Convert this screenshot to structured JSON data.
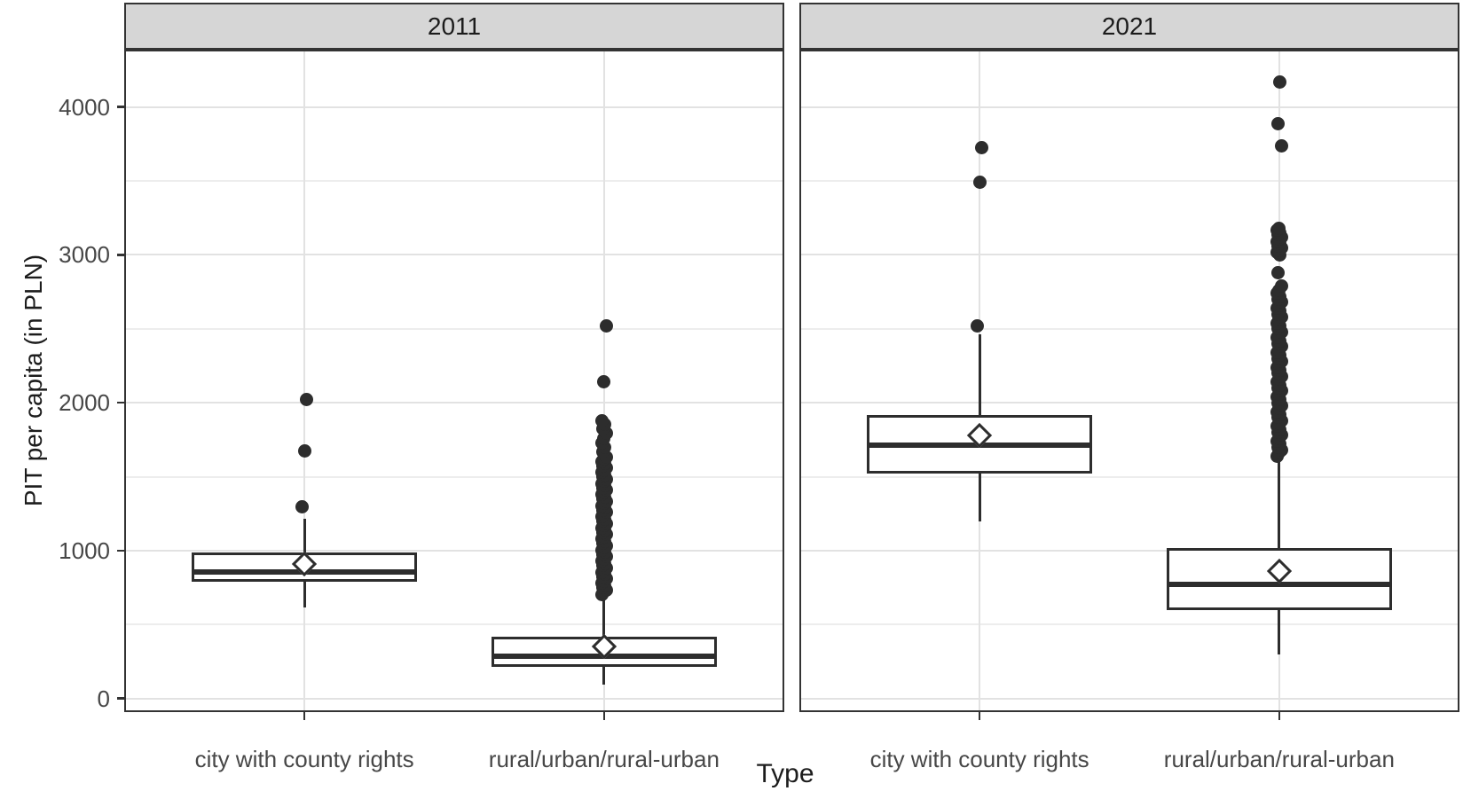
{
  "chart_data": {
    "type": "boxplot",
    "title": "",
    "xlabel": "Type",
    "ylabel": "PIT per capita (in PLN)",
    "facet_labels": [
      "2011",
      "2021"
    ],
    "categories": [
      "city with county rights",
      "rural/urban/rural-urban"
    ],
    "ylim": [
      -92,
      4388
    ],
    "yticks": [
      0,
      1000,
      2000,
      3000,
      4000
    ],
    "ytick_labels": [
      "0",
      "1000",
      "2000",
      "3000",
      "4000"
    ],
    "yminor": [
      500,
      1500,
      2500,
      3500
    ],
    "grid": "major+minor horizontal, vertical line per category",
    "legend": "none",
    "facets": [
      {
        "label": "2011",
        "boxes": [
          {
            "category": "city with county rights",
            "whisker_low": 615,
            "q1": 790,
            "median": 855,
            "mean": 910,
            "q3": 985,
            "whisker_high": 1215,
            "outliers": [
              1295,
              1675,
              2020
            ]
          },
          {
            "category": "rural/urban/rural-urban",
            "whisker_low": 95,
            "q1": 215,
            "median": 285,
            "mean": 350,
            "q3": 420,
            "whisker_high": 690,
            "outliers": [
              705,
              720,
              735,
              750,
              765,
              780,
              795,
              810,
              825,
              840,
              855,
              870,
              885,
              900,
              915,
              930,
              945,
              960,
              975,
              990,
              1005,
              1020,
              1035,
              1050,
              1065,
              1080,
              1095,
              1110,
              1125,
              1140,
              1155,
              1170,
              1185,
              1200,
              1215,
              1230,
              1245,
              1260,
              1275,
              1290,
              1305,
              1320,
              1335,
              1350,
              1365,
              1380,
              1395,
              1410,
              1425,
              1440,
              1455,
              1470,
              1485,
              1500,
              1515,
              1530,
              1545,
              1560,
              1575,
              1590,
              1605,
              1620,
              1635,
              1670,
              1700,
              1730,
              1760,
              1795,
              1825,
              1855,
              1880,
              2145,
              2520
            ]
          }
        ]
      },
      {
        "label": "2021",
        "boxes": [
          {
            "category": "city with county rights",
            "whisker_low": 1200,
            "q1": 1520,
            "median": 1715,
            "mean": 1780,
            "q3": 1915,
            "whisker_high": 2460,
            "outliers": [
              2520,
              3490,
              3725
            ]
          },
          {
            "category": "rural/urban/rural-urban",
            "whisker_low": 295,
            "q1": 600,
            "median": 770,
            "mean": 860,
            "q3": 1020,
            "whisker_high": 1630,
            "outliers": [
              1640,
              1660,
              1680,
              1700,
              1720,
              1740,
              1760,
              1780,
              1800,
              1820,
              1840,
              1860,
              1880,
              1900,
              1920,
              1940,
              1960,
              1980,
              2000,
              2020,
              2040,
              2060,
              2080,
              2100,
              2120,
              2140,
              2160,
              2180,
              2200,
              2220,
              2240,
              2260,
              2280,
              2300,
              2320,
              2340,
              2360,
              2380,
              2400,
              2420,
              2440,
              2460,
              2480,
              2500,
              2520,
              2540,
              2560,
              2580,
              2600,
              2620,
              2640,
              2660,
              2680,
              2700,
              2720,
              2740,
              2760,
              2790,
              2880,
              3000,
              3015,
              3030,
              3045,
              3060,
              3075,
              3090,
              3105,
              3120,
              3135,
              3150,
              3165,
              3180,
              3735,
              3890,
              4170
            ]
          }
        ]
      }
    ],
    "style": {
      "strip_bg": "#d6d6d6",
      "strip_border": "#333333",
      "panel_border": "#333333",
      "box_color": "#2d2d2d",
      "grid_major": "#e2e2e2",
      "grid_minor": "#ededed",
      "text_color": "#1c1c1c",
      "tick_label_color": "#474747"
    }
  }
}
